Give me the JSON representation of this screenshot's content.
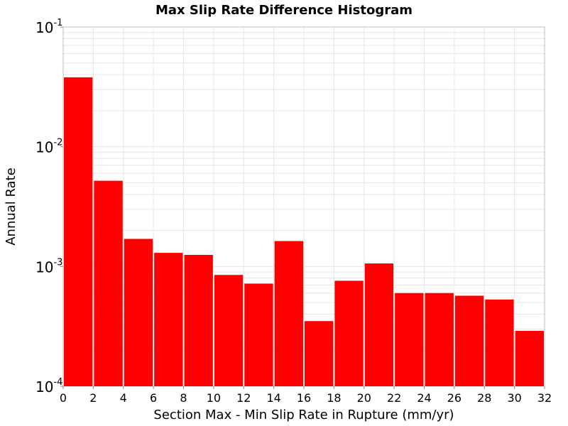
{
  "chart_data": {
    "type": "bar",
    "title": "Max Slip Rate Difference Histogram",
    "xlabel": "Section Max - Min Slip Rate in Rupture (mm/yr)",
    "ylabel": "Annual Rate",
    "xlim": [
      0,
      32
    ],
    "ylim": [
      0.0001,
      0.1
    ],
    "yscale": "log",
    "bin_width": 2,
    "x_ticks": [
      0,
      2,
      4,
      6,
      8,
      10,
      12,
      14,
      16,
      18,
      20,
      22,
      24,
      26,
      28,
      30,
      32
    ],
    "y_ticks": [
      {
        "base": "10",
        "exp": "-1",
        "value": 0.1
      },
      {
        "base": "10",
        "exp": "-2",
        "value": 0.01
      },
      {
        "base": "10",
        "exp": "-3",
        "value": 0.001
      },
      {
        "base": "10",
        "exp": "-4",
        "value": 0.0001
      }
    ],
    "bins": [
      {
        "x0": 0,
        "x1": 2,
        "value": 0.038
      },
      {
        "x0": 2,
        "x1": 4,
        "value": 0.0052
      },
      {
        "x0": 4,
        "x1": 6,
        "value": 0.0017
      },
      {
        "x0": 6,
        "x1": 8,
        "value": 0.0013
      },
      {
        "x0": 8,
        "x1": 10,
        "value": 0.00125
      },
      {
        "x0": 10,
        "x1": 12,
        "value": 0.00085
      },
      {
        "x0": 12,
        "x1": 14,
        "value": 0.00072
      },
      {
        "x0": 14,
        "x1": 16,
        "value": 0.00163
      },
      {
        "x0": 16,
        "x1": 18,
        "value": 0.00035
      },
      {
        "x0": 18,
        "x1": 20,
        "value": 0.00076
      },
      {
        "x0": 20,
        "x1": 22,
        "value": 0.00106
      },
      {
        "x0": 22,
        "x1": 24,
        "value": 0.0006
      },
      {
        "x0": 24,
        "x1": 26,
        "value": 0.0006
      },
      {
        "x0": 26,
        "x1": 28,
        "value": 0.00057
      },
      {
        "x0": 28,
        "x1": 30,
        "value": 0.00053
      },
      {
        "x0": 30,
        "x1": 32,
        "value": 0.00029
      }
    ],
    "bar_color": "#ff0000",
    "grid": true,
    "grid_color": "#e6e6e6",
    "legend": "none"
  }
}
